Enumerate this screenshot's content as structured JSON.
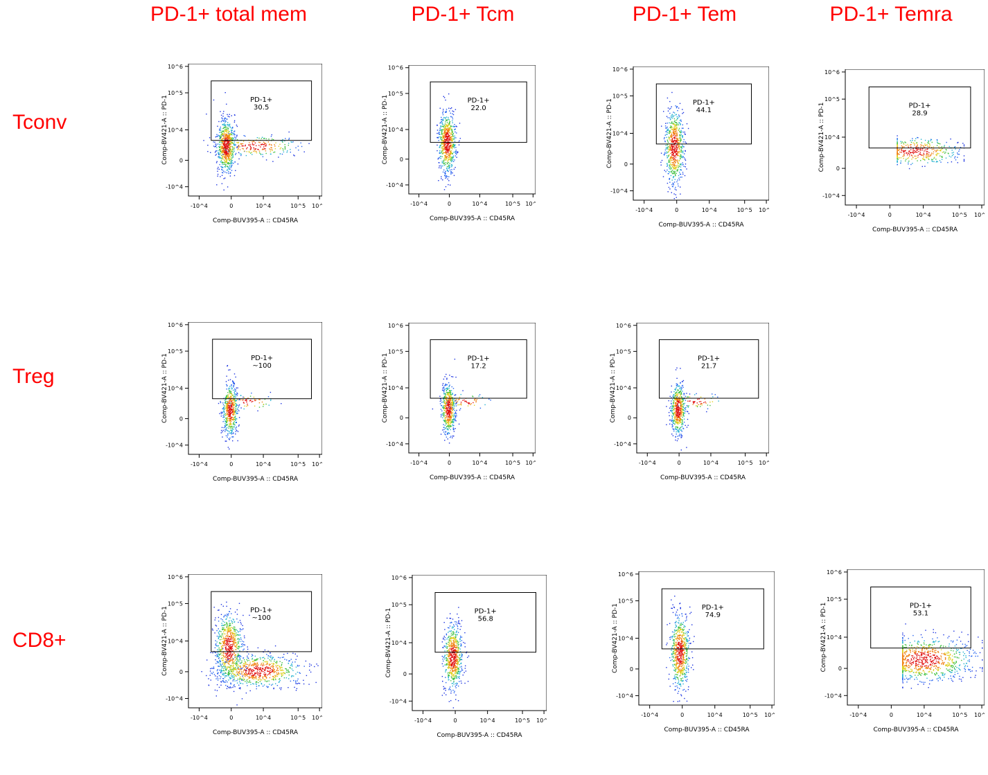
{
  "columns": [
    "PD-1+ total mem",
    "PD-1+ Tcm",
    "PD-1+ Tem",
    "PD-1+ Temra"
  ],
  "rows": [
    "Tconv",
    "Treg",
    "CD8+"
  ],
  "axis": {
    "xlabel": "Comp-BUV395-A :: CD45RA",
    "ylabel": "Comp-BV421-A :: PD-1",
    "x_ticks": [
      "-10^4",
      "0",
      "10^4",
      "10^5",
      "10^6"
    ],
    "y_ticks": [
      "10^6",
      "10^5",
      "10^4",
      "0",
      "-10^4"
    ]
  },
  "chart_data": [
    {
      "type": "scatter",
      "row": "Tconv",
      "column": "PD-1+ total mem",
      "gate": {
        "label": "PD-1+",
        "value": "30.5"
      },
      "population": "broad"
    },
    {
      "type": "scatter",
      "row": "Tconv",
      "column": "PD-1+ Tcm",
      "gate": {
        "label": "PD-1+",
        "value": "22.0"
      },
      "population": "cm"
    },
    {
      "type": "scatter",
      "row": "Tconv",
      "column": "PD-1+ Tem",
      "gate": {
        "label": "PD-1+",
        "value": "44.1"
      },
      "population": "em"
    },
    {
      "type": "scatter",
      "row": "Tconv",
      "column": "PD-1+ Temra",
      "gate": {
        "label": "PD-1+",
        "value": "28.9"
      },
      "population": "sparse"
    },
    {
      "type": "scatter",
      "row": "Treg",
      "column": "PD-1+ total mem",
      "gate": {
        "label": "PD-1+",
        "value": "~100"
      },
      "population": "narrow"
    },
    {
      "type": "scatter",
      "row": "Treg",
      "column": "PD-1+ Tcm",
      "gate": {
        "label": "PD-1+",
        "value": "17.2"
      },
      "population": "narrow"
    },
    {
      "type": "scatter",
      "row": "Treg",
      "column": "PD-1+ Tem",
      "gate": {
        "label": "PD-1+",
        "value": "21.7"
      },
      "population": "narrow"
    },
    {
      "type": "scatter",
      "row": "CD8+",
      "column": "PD-1+ total mem",
      "gate": {
        "label": "PD-1+",
        "value": "~100"
      },
      "population": "cd8wide"
    },
    {
      "type": "scatter",
      "row": "CD8+",
      "column": "PD-1+ Tcm",
      "gate": {
        "label": "PD-1+",
        "value": "56.8"
      },
      "population": "cm"
    },
    {
      "type": "scatter",
      "row": "CD8+",
      "column": "PD-1+ Tem",
      "gate": {
        "label": "PD-1+",
        "value": "74.9"
      },
      "population": "em"
    },
    {
      "type": "scatter",
      "row": "CD8+",
      "column": "PD-1+ Temra",
      "gate": {
        "label": "PD-1+",
        "value": "53.1"
      },
      "population": "temra"
    }
  ]
}
